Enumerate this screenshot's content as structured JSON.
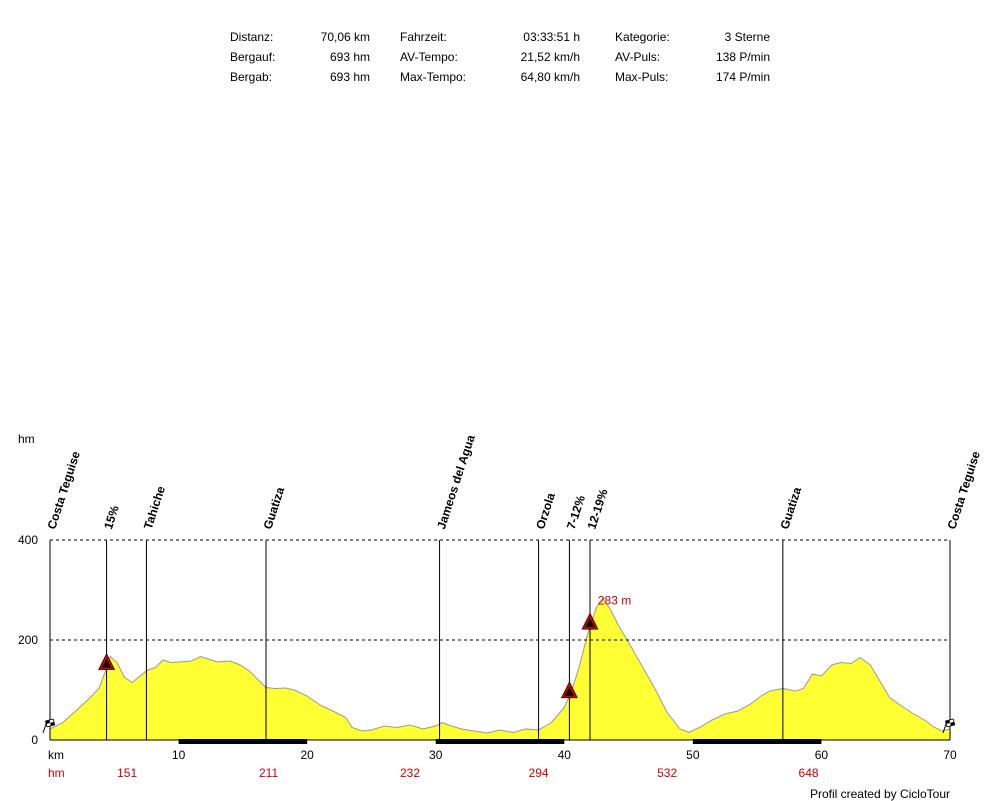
{
  "stats": [
    {
      "label": "Distanz:",
      "value": "70,06 km"
    },
    {
      "label": "Fahrzeit:",
      "value": "03:33:51 h"
    },
    {
      "label": "Kategorie:",
      "value": "3 Sterne"
    },
    {
      "label": "Bergauf:",
      "value": "693 hm"
    },
    {
      "label": "AV-Tempo:",
      "value": "21,52 km/h"
    },
    {
      "label": "AV-Puls:",
      "value": "138 P/min"
    },
    {
      "label": "Bergab:",
      "value": "693 hm"
    },
    {
      "label": "Max-Tempo:",
      "value": "64,80 km/h"
    },
    {
      "label": "Max-Puls:",
      "value": "174 P/min"
    }
  ],
  "credit": "Profil created by CicloTour",
  "chart_data": {
    "type": "area",
    "ylabel": "hm",
    "xlabel": "km",
    "hm_row_label": "hm",
    "xlim": [
      0,
      70
    ],
    "ylim": [
      0,
      400
    ],
    "y_ticks": [
      0,
      200,
      400
    ],
    "x_ticks": [
      10,
      20,
      30,
      40,
      50,
      60,
      70
    ],
    "gridlines_y": [
      200,
      400
    ],
    "fill_color": "#ffff33",
    "line_color": "#999999",
    "accent_color": "#cc0000",
    "max_label": {
      "x": 43.0,
      "y": 283,
      "text": "283 m"
    },
    "cumulative_hm": [
      {
        "x": 6,
        "text": "151"
      },
      {
        "x": 17,
        "text": "211"
      },
      {
        "x": 28,
        "text": "232"
      },
      {
        "x": 38,
        "text": "294"
      },
      {
        "x": 48,
        "text": "532"
      },
      {
        "x": 59,
        "text": "648"
      }
    ],
    "waypoints": [
      {
        "x": 0.0,
        "label": "Costa Teguise",
        "icon": "checkered-flag"
      },
      {
        "x": 4.4,
        "label": "15%",
        "icon": "climb-warning"
      },
      {
        "x": 7.5,
        "label": "Tahiche"
      },
      {
        "x": 16.8,
        "label": "Guatiza"
      },
      {
        "x": 30.3,
        "label": "Jameos del Agua"
      },
      {
        "x": 38.0,
        "label": "Orzola"
      },
      {
        "x": 40.4,
        "label": "7-12%",
        "icon": "climb-warning"
      },
      {
        "x": 42.0,
        "label": "12-19%",
        "icon": "climb-warning"
      },
      {
        "x": 57.0,
        "label": "Guatiza"
      },
      {
        "x": 70.0,
        "label": "Costa Teguise",
        "icon": "checkered-flag"
      }
    ],
    "profile": [
      [
        0.0,
        22
      ],
      [
        1.0,
        35
      ],
      [
        2.0,
        58
      ],
      [
        3.0,
        82
      ],
      [
        3.8,
        103
      ],
      [
        4.2,
        130
      ],
      [
        4.7,
        167
      ],
      [
        5.2,
        155
      ],
      [
        5.8,
        125
      ],
      [
        6.4,
        115
      ],
      [
        7.0,
        128
      ],
      [
        7.6,
        140
      ],
      [
        8.2,
        145
      ],
      [
        8.8,
        160
      ],
      [
        9.4,
        155
      ],
      [
        10.0,
        156
      ],
      [
        11.0,
        158
      ],
      [
        11.7,
        167
      ],
      [
        12.3,
        162
      ],
      [
        13.0,
        156
      ],
      [
        14.0,
        158
      ],
      [
        14.8,
        150
      ],
      [
        15.5,
        138
      ],
      [
        16.2,
        120
      ],
      [
        16.8,
        105
      ],
      [
        17.5,
        103
      ],
      [
        18.3,
        104
      ],
      [
        19.0,
        100
      ],
      [
        20.0,
        88
      ],
      [
        21.0,
        70
      ],
      [
        22.0,
        58
      ],
      [
        23.0,
        45
      ],
      [
        23.5,
        25
      ],
      [
        24.3,
        18
      ],
      [
        25.0,
        20
      ],
      [
        26.0,
        28
      ],
      [
        27.0,
        25
      ],
      [
        28.0,
        30
      ],
      [
        29.0,
        22
      ],
      [
        30.0,
        28
      ],
      [
        30.5,
        35
      ],
      [
        31.0,
        30
      ],
      [
        32.0,
        22
      ],
      [
        33.0,
        18
      ],
      [
        34.0,
        14
      ],
      [
        35.0,
        20
      ],
      [
        36.0,
        15
      ],
      [
        37.0,
        22
      ],
      [
        38.0,
        20
      ],
      [
        39.0,
        35
      ],
      [
        40.0,
        65
      ],
      [
        40.6,
        100
      ],
      [
        41.2,
        150
      ],
      [
        41.8,
        210
      ],
      [
        42.5,
        265
      ],
      [
        43.0,
        283
      ],
      [
        43.5,
        265
      ],
      [
        44.2,
        230
      ],
      [
        45.0,
        195
      ],
      [
        46.0,
        150
      ],
      [
        47.0,
        105
      ],
      [
        48.0,
        55
      ],
      [
        49.0,
        22
      ],
      [
        49.7,
        15
      ],
      [
        50.5,
        25
      ],
      [
        51.5,
        40
      ],
      [
        52.5,
        52
      ],
      [
        53.5,
        58
      ],
      [
        54.5,
        72
      ],
      [
        55.3,
        88
      ],
      [
        56.0,
        98
      ],
      [
        57.0,
        103
      ],
      [
        58.0,
        98
      ],
      [
        58.6,
        103
      ],
      [
        59.3,
        132
      ],
      [
        60.0,
        128
      ],
      [
        60.8,
        150
      ],
      [
        61.5,
        155
      ],
      [
        62.3,
        153
      ],
      [
        63.0,
        165
      ],
      [
        63.8,
        150
      ],
      [
        64.5,
        120
      ],
      [
        65.3,
        85
      ],
      [
        66.0,
        72
      ],
      [
        67.0,
        55
      ],
      [
        68.0,
        40
      ],
      [
        68.8,
        25
      ],
      [
        69.4,
        18
      ],
      [
        70.0,
        22
      ]
    ]
  }
}
